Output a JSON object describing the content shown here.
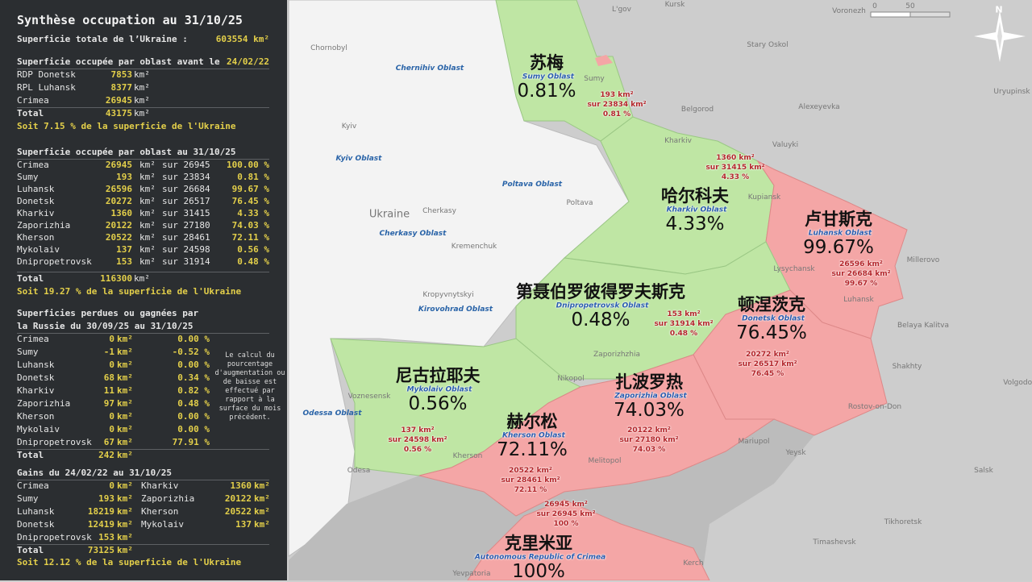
{
  "panel": {
    "title": "Synthèse occupation au 31/10/25",
    "total_area_label": "Superficie totale de l’Ukraine :",
    "total_area_value": "603554 km²",
    "before": {
      "header": "Superficie occupée par oblast avant le ",
      "header_date": "24/02/22",
      "rows": [
        {
          "name": "RDP Donetsk",
          "value": "7853"
        },
        {
          "name": "RPL Luhansk",
          "value": "8377"
        },
        {
          "name": "Crimea",
          "value": "26945"
        }
      ],
      "total_label": "Total",
      "total_value": "43175",
      "unit": "km²",
      "summary": "Soit 7.15 % de la superficie de l'Ukraine"
    },
    "current": {
      "header": "Superficie occupée par oblast au 31/10/25",
      "rows": [
        {
          "name": "Crimea",
          "value": "26945",
          "of": "sur 26945",
          "pct": "100.00 %"
        },
        {
          "name": "Sumy",
          "value": "193",
          "of": "sur 23834",
          "pct": "0.81 %"
        },
        {
          "name": "Luhansk",
          "value": "26596",
          "of": "sur 26684",
          "pct": "99.67 %"
        },
        {
          "name": "Donetsk",
          "value": "20272",
          "of": "sur 26517",
          "pct": "76.45 %"
        },
        {
          "name": "Kharkiv",
          "value": "1360",
          "of": "sur 31415",
          "pct": "4.33 %"
        },
        {
          "name": "Zaporizhia",
          "value": "20122",
          "of": "sur 27180",
          "pct": "74.03 %"
        },
        {
          "name": "Kherson",
          "value": "20522",
          "of": "sur 28461",
          "pct": "72.11 %"
        },
        {
          "name": "Mykolaiv",
          "value": "137",
          "of": "sur 24598",
          "pct": "0.56 %"
        },
        {
          "name": "Dnipropetrovsk",
          "value": "153",
          "of": "sur 31914",
          "pct": "0.48 %"
        }
      ],
      "unit": "km²",
      "total_label": "Total",
      "total_value": "116300",
      "summary": "Soit 19.27 % de la superficie de l'Ukraine"
    },
    "change": {
      "header1": "Superficies perdues ou gagnées par",
      "header2": "la Russie du 30/09/25 au 31/10/25",
      "rows": [
        {
          "name": "Crimea",
          "value": "0",
          "pct": "0.00 %"
        },
        {
          "name": "Sumy",
          "value": "-1",
          "pct": "-0.52 %"
        },
        {
          "name": "Luhansk",
          "value": "0",
          "pct": "0.00 %"
        },
        {
          "name": "Donetsk",
          "value": "68",
          "pct": "0.34 %"
        },
        {
          "name": "Kharkiv",
          "value": "11",
          "pct": "0.82 %"
        },
        {
          "name": "Zaporizhia",
          "value": "97",
          "pct": "0.48 %"
        },
        {
          "name": "Kherson",
          "value": "0",
          "pct": "0.00 %"
        },
        {
          "name": "Mykolaiv",
          "value": "0",
          "pct": "0.00 %"
        },
        {
          "name": "Dnipropetrovsk",
          "value": "67",
          "pct": "77.91 %"
        }
      ],
      "unit": "km²",
      "total_label": "Total",
      "total_value": "242",
      "note": "Le calcul du pourcentage d'augmentation ou de baisse est effectué par rapport à la surface du mois précédent."
    },
    "gains": {
      "header": "Gains du 24/02/22 au 31/10/25",
      "rows": [
        {
          "name": "Crimea",
          "value": "0",
          "name2": "Kharkiv",
          "value2": "1360"
        },
        {
          "name": "Sumy",
          "value": "193",
          "name2": "Zaporizhia",
          "value2": "20122"
        },
        {
          "name": "Luhansk",
          "value": "18219",
          "name2": "Kherson",
          "value2": "20522"
        },
        {
          "name": "Donetsk",
          "value": "12419",
          "name2": "Mykolaiv",
          "value2": "137"
        },
        {
          "name": "Dnipropetrovsk",
          "value": "153"
        }
      ],
      "unit": "km²",
      "total_label": "Total",
      "total_value": "73125",
      "summary": "Soit 12.12 % de la superficie de l'Ukraine"
    }
  },
  "map": {
    "colors": {
      "occupied": "#f4a6a6",
      "free_oblast": "#bfe6a4",
      "ukraine": "#f3f3f3",
      "russia": "#cdcdcd",
      "sea": "#bcbcbc"
    },
    "scale": {
      "zero": "0",
      "fifty": "50"
    },
    "north": "N",
    "regions": [
      {
        "zh": "苏梅",
        "en": "Sumy Oblast",
        "pct": "0.81%",
        "info": [
          "193 km²",
          "sur 23834 km²",
          "0.81 %"
        ]
      },
      {
        "zh": "哈尔科夫",
        "en": "Kharkiv Oblast",
        "pct": "4.33%",
        "info": [
          "1360 km²",
          "sur 31415 km²",
          "4.33 %"
        ]
      },
      {
        "zh": "卢甘斯克",
        "en": "Luhansk Oblast",
        "pct": "99.67%",
        "info": [
          "26596 km²",
          "sur 26684 km²",
          "99.67 %"
        ]
      },
      {
        "zh": "第聂伯罗彼得罗夫斯克",
        "en": "Dnipropetrovsk Oblast",
        "pct": "0.48%",
        "info": [
          "153 km²",
          "sur 31914 km²",
          "0.48 %"
        ]
      },
      {
        "zh": "顿涅茨克",
        "en": "Donetsk Oblast",
        "pct": "76.45%",
        "info": [
          "20272 km²",
          "sur 26517 km²",
          "76.45 %"
        ]
      },
      {
        "zh": "尼古拉耶夫",
        "en": "Mykolaiv Oblast",
        "pct": "0.56%",
        "info": [
          "137 km²",
          "sur 24598 km²",
          "0.56 %"
        ]
      },
      {
        "zh": "赫尔松",
        "en": "Kherson Oblast",
        "pct": "72.11%",
        "info": [
          "20522 km²",
          "sur 28461 km²",
          "72.11 %"
        ]
      },
      {
        "zh": "扎波罗热",
        "en": "Zaporizhia Oblast",
        "pct": "74.03%",
        "info": [
          "20122 km²",
          "sur 27180 km²",
          "74.03 %"
        ]
      },
      {
        "zh": "克里米亚",
        "en": "Autonomous Republic of Crimea",
        "pct": "100%",
        "info": [
          "26945 km²",
          "sur 26945 km²",
          "100 %"
        ]
      }
    ],
    "oblasts": [
      "Chernihiv Oblast",
      "Kyiv Oblast",
      "Poltava Oblast",
      "Cherkasy Oblast",
      "Kirovohrad Oblast",
      "Odessa Oblast"
    ],
    "cities": [
      "L'gov",
      "Kursk",
      "Voronezh",
      "Chornobyl",
      "Stary Oskol",
      "Belgorod",
      "Alexeyevka",
      "Uryupinsk",
      "Sumy",
      "Kyiv",
      "Kharkiv",
      "Valuyki",
      "Poltava",
      "Kupiansk",
      "Ukraine",
      "Cherkasy",
      "Kremenchuk",
      "Lysychansk",
      "Millerovo",
      "Luhansk",
      "Kropyvnytskyi",
      "Zaporizhzhia",
      "Belaya Kalitva",
      "Shakhty",
      "Nikopol",
      "Voznesensk",
      "Rostov-on-Don",
      "Volgodon",
      "Kherson",
      "Melitopol",
      "Mariupol",
      "Yeysk",
      "Salsk",
      "Odesa",
      "Tikhoretsk",
      "Timashevsk",
      "Kerch",
      "Yevpatoria"
    ]
  }
}
